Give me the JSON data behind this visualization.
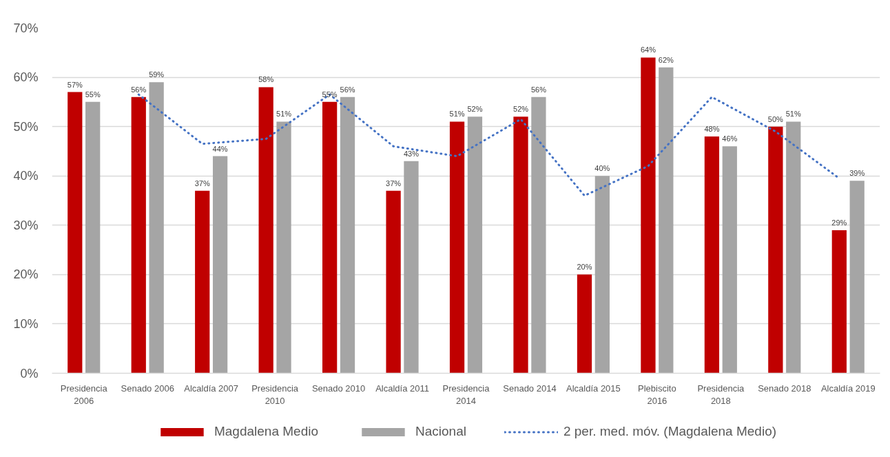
{
  "chart_data": {
    "type": "bar",
    "categories": [
      "Presidencia 2006",
      "Senado 2006",
      "Alcaldía 2007",
      "Presidencia 2010",
      "Senado 2010",
      "Alcaldía 2011",
      "Presidencia 2014",
      "Senado 2014",
      "Alcaldía 2015",
      "Plebiscito 2016",
      "Presidencia 2018",
      "Senado 2018",
      "Alcaldía 2019"
    ],
    "series": [
      {
        "name": "Magdalena Medio",
        "color": "#c00000",
        "values": [
          57,
          56,
          37,
          58,
          55,
          37,
          51,
          52,
          20,
          64,
          48,
          50,
          29
        ],
        "value_labels": [
          "57%",
          "56%",
          "37%",
          "58%",
          "55%",
          "37%",
          "51%",
          "52%",
          "20%",
          "64%",
          "48%",
          "50%",
          "29%"
        ]
      },
      {
        "name": "Nacional",
        "color": "#a5a5a5",
        "values": [
          55,
          59,
          44,
          51,
          56,
          43,
          52,
          56,
          40,
          62,
          46,
          51,
          39
        ],
        "value_labels": [
          "55%",
          "59%",
          "44%",
          "51%",
          "56%",
          "43%",
          "52%",
          "56%",
          "40%",
          "62%",
          "46%",
          "51%",
          "39%"
        ]
      },
      {
        "name": "2 per. med. móv. (Magdalena Medio)",
        "type": "line",
        "color": "#4472c4",
        "line_style": "dotted",
        "values": [
          null,
          56.5,
          46.5,
          47.5,
          56.5,
          46,
          44,
          51.5,
          36,
          42,
          56,
          49,
          39.5
        ]
      }
    ],
    "ylim": [
      0,
      70
    ],
    "yticks": [
      {
        "value": 0,
        "label": "0%"
      },
      {
        "value": 10,
        "label": "10%"
      },
      {
        "value": 20,
        "label": "20%"
      },
      {
        "value": 30,
        "label": "30%"
      },
      {
        "value": 40,
        "label": "40%"
      },
      {
        "value": 50,
        "label": "50%"
      },
      {
        "value": 60,
        "label": "60%"
      },
      {
        "value": 70,
        "label": "70%"
      }
    ],
    "grid": "y",
    "legend": "bottom"
  }
}
